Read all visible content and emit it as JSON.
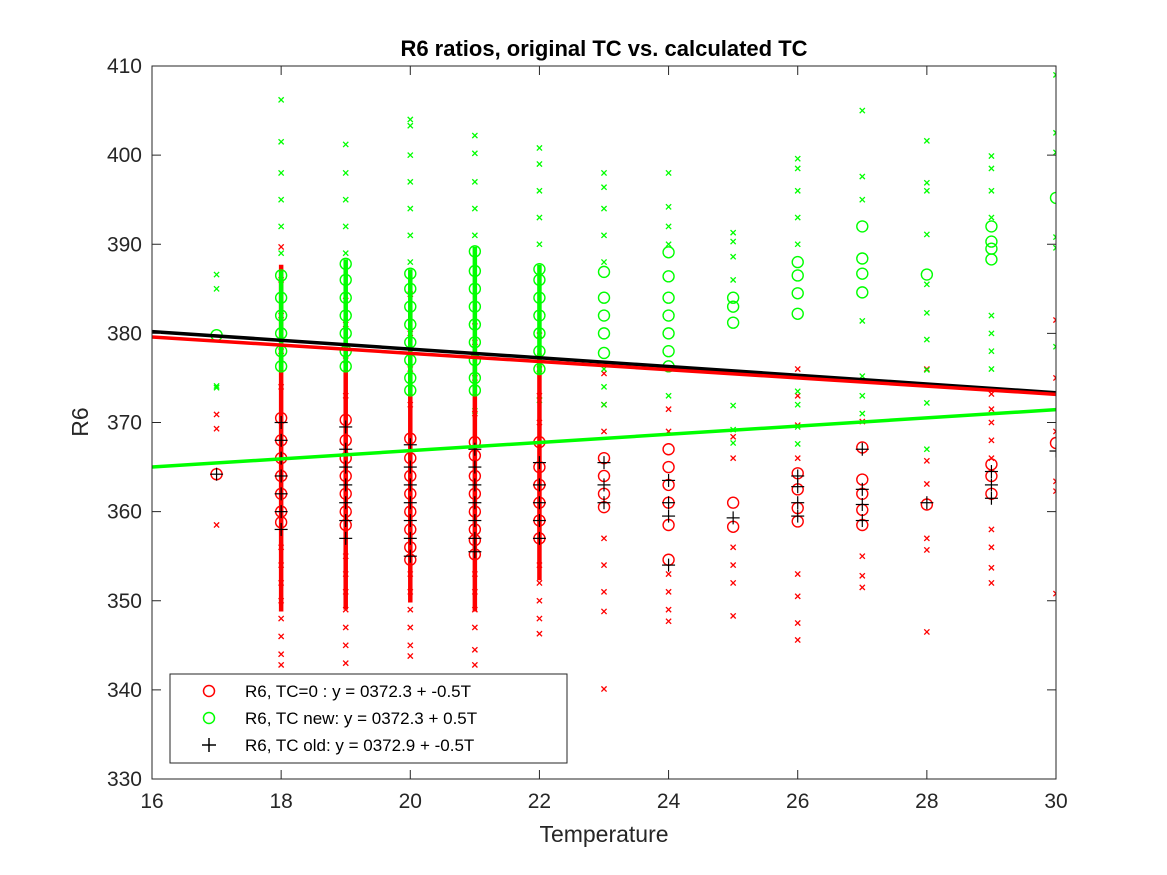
{
  "chart_data": {
    "type": "scatter",
    "title": "R6 ratios, original TC vs. calculated TC",
    "xlabel": "Temperature",
    "ylabel": "R6",
    "xlim": [
      16,
      30
    ],
    "ylim": [
      330,
      410
    ],
    "xticks": [
      16,
      18,
      20,
      22,
      24,
      26,
      28,
      30
    ],
    "yticks": [
      330,
      340,
      350,
      360,
      370,
      380,
      390,
      400,
      410
    ],
    "x_categories": [
      17,
      18,
      19,
      20,
      21,
      22,
      23,
      24,
      25,
      26,
      27,
      28,
      29,
      30
    ],
    "legend_position": "bottom-left",
    "series": [
      {
        "name": "R6, TC=0  :  y = 0372.3 + -0.5T",
        "color": "#ff0000",
        "marker": "o",
        "fit": {
          "intercept": 372.3,
          "slope": -0.46
        },
        "circles": [
          {
            "x": 17,
            "values": [
              364.2
            ]
          },
          {
            "x": 18,
            "values": [
              358.8,
              360,
              362,
              364,
              366,
              368,
              370.5
            ]
          },
          {
            "x": 19,
            "values": [
              358.5,
              360,
              362,
              364,
              366,
              368,
              370.3
            ]
          },
          {
            "x": 20,
            "values": [
              354.6,
              356,
              358,
              360,
              362,
              364,
              366,
              368.2
            ]
          },
          {
            "x": 21,
            "values": [
              355.2,
              356.8,
              358,
              360,
              362,
              364,
              366.3,
              367.8
            ]
          },
          {
            "x": 22,
            "values": [
              357,
              359,
              361,
              363,
              365,
              367.8
            ]
          },
          {
            "x": 23,
            "values": [
              360.5,
              362,
              364,
              366
            ]
          },
          {
            "x": 24,
            "values": [
              354.6,
              358.5,
              361,
              363,
              365,
              367
            ]
          },
          {
            "x": 25,
            "values": [
              358.3,
              361
            ]
          },
          {
            "x": 26,
            "values": [
              358.9,
              360.4,
              362.5,
              364.3
            ]
          },
          {
            "x": 27,
            "values": [
              358.5,
              360.2,
              362,
              363.6,
              367.2
            ]
          },
          {
            "x": 28,
            "values": [
              360.8
            ]
          },
          {
            "x": 29,
            "values": [
              362,
              364,
              365.3
            ]
          },
          {
            "x": 30,
            "values": [
              367.7
            ]
          }
        ],
        "crosses": [
          {
            "x": 17,
            "values": [
              358.5,
              369.3,
              370.9
            ]
          },
          {
            "x": 18,
            "values": [
              342.8,
              344,
              346,
              348,
              350,
              352,
              354,
              356,
              374,
              378,
              382,
              386,
              389.7
            ]
          },
          {
            "x": 19,
            "values": [
              343,
              345,
              347,
              349,
              351,
              353,
              355,
              373,
              377,
              381,
              383.7
            ]
          },
          {
            "x": 20,
            "values": [
              343.8,
              345,
              347,
              349,
              351,
              353,
              372,
              376,
              380,
              384.4
            ]
          },
          {
            "x": 21,
            "values": [
              342.8,
              344.5,
              347,
              349,
              351,
              353,
              371,
              375,
              379,
              381.3
            ]
          },
          {
            "x": 22,
            "values": [
              346.3,
              348,
              350,
              352,
              354,
              370,
              373,
              376,
              379.8
            ]
          },
          {
            "x": 23,
            "values": [
              340.1,
              348.8,
              351,
              354,
              357,
              369,
              372,
              375.5
            ]
          },
          {
            "x": 24,
            "values": [
              347.7,
              349,
              351,
              353,
              369,
              371.5
            ]
          },
          {
            "x": 25,
            "values": [
              348.3,
              352,
              354,
              356,
              366,
              368.4
            ]
          },
          {
            "x": 26,
            "values": [
              345.6,
              347.5,
              350.5,
              353,
              366,
              369.7,
              373,
              376
            ]
          },
          {
            "x": 27,
            "values": [
              351.5,
              352.8,
              355,
              370.1
            ]
          },
          {
            "x": 28,
            "values": [
              346.5,
              355.7,
              357,
              363.1,
              365.7,
              376
            ]
          },
          {
            "x": 29,
            "values": [
              352,
              353.7,
              356,
              358,
              366,
              368,
              370,
              371.5,
              373.2
            ]
          },
          {
            "x": 30,
            "values": [
              350.8,
              362.3,
              363.4,
              369,
              375,
              381.5
            ]
          }
        ]
      },
      {
        "name": "R6, TC new: y = 0372.3 + 0.5T",
        "color": "#00ff00",
        "marker": "o",
        "fit": {
          "intercept": 372.3,
          "slope": 0.46
        },
        "circles": [
          {
            "x": 17,
            "values": [
              379.8
            ]
          },
          {
            "x": 18,
            "values": [
              376.3,
              378,
              380,
              382,
              384,
              386.5
            ]
          },
          {
            "x": 19,
            "values": [
              376.3,
              378,
              380,
              382,
              384,
              386,
              387.8
            ]
          },
          {
            "x": 20,
            "values": [
              373.6,
              375,
              377,
              379,
              381,
              383,
              385,
              386.7
            ]
          },
          {
            "x": 21,
            "values": [
              373.6,
              375,
              377,
              379,
              381,
              383,
              385,
              387,
              389.2
            ]
          },
          {
            "x": 22,
            "values": [
              376,
              378,
              380,
              382,
              384,
              386,
              387.2
            ]
          },
          {
            "x": 23,
            "values": [
              377.8,
              380,
              382,
              384,
              386.9
            ]
          },
          {
            "x": 24,
            "values": [
              376.3,
              378,
              380,
              382,
              384,
              386.4,
              389.1
            ]
          },
          {
            "x": 25,
            "values": [
              381.2,
              383,
              384
            ]
          },
          {
            "x": 26,
            "values": [
              382.2,
              384.5,
              386.5,
              388
            ]
          },
          {
            "x": 27,
            "values": [
              384.6,
              386.7,
              388.4,
              392
            ]
          },
          {
            "x": 28,
            "values": [
              386.6
            ]
          },
          {
            "x": 29,
            "values": [
              388.3,
              389.5,
              390.3,
              392
            ]
          },
          {
            "x": 30,
            "values": [
              395.2
            ]
          }
        ],
        "crosses": [
          {
            "x": 17,
            "values": [
              373.9,
              374.1,
              385,
              386.6
            ]
          },
          {
            "x": 18,
            "values": [
              389,
              392,
              395,
              398,
              401.5,
              406.2
            ]
          },
          {
            "x": 19,
            "values": [
              389,
              392,
              395,
              398,
              401.2
            ]
          },
          {
            "x": 20,
            "values": [
              388,
              391,
              394,
              397,
              400,
              403.3,
              404
            ]
          },
          {
            "x": 21,
            "values": [
              371.3,
              391,
              394,
              397,
              400.2,
              402.2
            ]
          },
          {
            "x": 22,
            "values": [
              372.5,
              390,
              393,
              396,
              399,
              400.8
            ]
          },
          {
            "x": 23,
            "values": [
              372,
              374,
              376,
              388,
              391,
              394,
              396.4,
              398
            ]
          },
          {
            "x": 24,
            "values": [
              373,
              390,
              392,
              394.2,
              398
            ]
          },
          {
            "x": 25,
            "values": [
              367.7,
              369.2,
              371.9,
              386,
              388.6,
              390.3,
              391.3
            ]
          },
          {
            "x": 26,
            "values": [
              367.6,
              369.5,
              372,
              373.5,
              390,
              393,
              396,
              398.5,
              399.6
            ]
          },
          {
            "x": 27,
            "values": [
              371,
              373,
              375.2,
              381.4,
              395,
              397.6,
              405
            ]
          },
          {
            "x": 28,
            "values": [
              367,
              372.2,
              375.9,
              379.3,
              382.3,
              385.5,
              391.1,
              396,
              396.9,
              401.6
            ]
          },
          {
            "x": 29,
            "values": [
              376,
              378,
              380,
              382,
              393,
              396,
              398.5,
              399.9
            ]
          },
          {
            "x": 30,
            "values": [
              378.5,
              389.6,
              390.8,
              400.3,
              402.5,
              409
            ]
          }
        ]
      },
      {
        "name": "R6, TC old: y = 0372.9 + -0.5T",
        "color": "#000000",
        "marker": "+",
        "fit": {
          "intercept": 372.9,
          "slope": -0.49
        },
        "points": [
          {
            "x": 17,
            "values": [
              364.2
            ]
          },
          {
            "x": 18,
            "values": [
              358,
              360,
              362,
              364,
              366,
              368,
              370
            ]
          },
          {
            "x": 19,
            "values": [
              357,
              359,
              361,
              363,
              365,
              367,
              369.5
            ]
          },
          {
            "x": 20,
            "values": [
              355,
              357,
              359,
              361,
              363,
              365,
              367.5
            ]
          },
          {
            "x": 21,
            "values": [
              355.5,
              357,
              359,
              361,
              363,
              365,
              367
            ]
          },
          {
            "x": 22,
            "values": [
              357,
              359,
              361,
              363,
              365.5
            ]
          },
          {
            "x": 23,
            "values": [
              361,
              363,
              365.5
            ]
          },
          {
            "x": 24,
            "values": [
              354,
              359.5,
              361,
              363.5
            ]
          },
          {
            "x": 25,
            "values": [
              359.3
            ]
          },
          {
            "x": 26,
            "values": [
              359.5,
              361,
              362.8,
              364
            ]
          },
          {
            "x": 27,
            "values": [
              359,
              360.8,
              362.5,
              367
            ]
          },
          {
            "x": 28,
            "values": [
              361
            ]
          },
          {
            "x": 29,
            "values": [
              361.5,
              363,
              364.5
            ]
          },
          {
            "x": 30,
            "values": [
              366.8
            ]
          }
        ]
      }
    ]
  }
}
